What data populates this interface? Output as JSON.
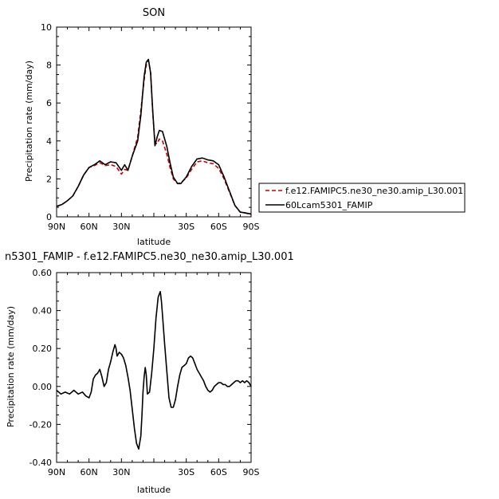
{
  "chart_data": [
    {
      "type": "line",
      "title": "SON",
      "xlabel": "latitude",
      "ylabel": "Precipitation rate (mm/day)",
      "xlim": [
        90,
        -90
      ],
      "ylim": [
        0,
        10
      ],
      "xticks": [
        90,
        60,
        30,
        0,
        -30,
        -60,
        -90
      ],
      "xtick_labels": [
        "90N",
        "60N",
        "30N",
        "",
        "30S",
        "60S",
        "90S"
      ],
      "yticks": [
        0,
        2,
        4,
        6,
        8,
        10
      ],
      "ytick_labels": [
        "0",
        "2",
        "4",
        "6",
        "8",
        "10"
      ],
      "legend_position": "right",
      "series": [
        {
          "name": "f.e12.FAMIPC5.ne30_ne30.amip_L30.001",
          "color": "#cc0000",
          "dash": "dashed",
          "x": [
            90,
            85,
            80,
            75,
            70,
            65,
            60,
            55,
            50,
            45,
            40,
            35,
            30,
            27,
            24,
            20,
            15,
            12,
            9,
            7,
            5,
            3,
            1,
            -1,
            -3,
            -5,
            -8,
            -12,
            -15,
            -18,
            -22,
            -25,
            -30,
            -35,
            -40,
            -45,
            -50,
            -55,
            -60,
            -65,
            -70,
            -75,
            -80,
            -85,
            -90
          ],
          "y": [
            0.55,
            0.65,
            0.85,
            1.1,
            1.6,
            2.2,
            2.6,
            2.7,
            2.85,
            2.7,
            2.75,
            2.65,
            2.25,
            2.5,
            2.45,
            3.2,
            4.2,
            5.6,
            7.2,
            8.0,
            8.25,
            7.6,
            5.5,
            3.9,
            3.85,
            4.1,
            4.0,
            3.3,
            2.6,
            2.0,
            1.75,
            1.8,
            2.05,
            2.5,
            2.9,
            2.95,
            2.85,
            2.8,
            2.55,
            2.0,
            1.3,
            0.6,
            0.25,
            0.2,
            0.1
          ]
        },
        {
          "name": "60Lcam5301_FAMIP",
          "color": "#000000",
          "dash": "solid",
          "x": [
            90,
            85,
            80,
            75,
            70,
            65,
            60,
            55,
            50,
            45,
            40,
            35,
            30,
            27,
            24,
            20,
            15,
            12,
            9,
            7,
            5,
            3,
            1,
            -1,
            -3,
            -5,
            -8,
            -12,
            -15,
            -18,
            -22,
            -25,
            -30,
            -35,
            -40,
            -45,
            -50,
            -55,
            -60,
            -65,
            -70,
            -75,
            -80,
            -85,
            -90
          ],
          "y": [
            0.55,
            0.65,
            0.85,
            1.1,
            1.6,
            2.2,
            2.6,
            2.75,
            2.95,
            2.75,
            2.9,
            2.85,
            2.45,
            2.75,
            2.45,
            3.2,
            4.0,
            5.35,
            7.4,
            8.15,
            8.3,
            7.6,
            5.6,
            3.75,
            4.2,
            4.55,
            4.5,
            3.7,
            2.85,
            2.1,
            1.75,
            1.75,
            2.1,
            2.65,
            3.05,
            3.1,
            3.0,
            2.95,
            2.75,
            2.1,
            1.35,
            0.6,
            0.25,
            0.2,
            0.15
          ]
        }
      ]
    },
    {
      "type": "line",
      "title": "n5301_FAMIP - f.e12.FAMIPC5.ne30_ne30.amip_L30.001",
      "xlabel": "latitude",
      "ylabel": "Precipitation rate (mm/day)",
      "xlim": [
        90,
        -90
      ],
      "ylim": [
        -0.4,
        0.6
      ],
      "xticks": [
        90,
        60,
        30,
        0,
        -30,
        -60,
        -90
      ],
      "xtick_labels": [
        "90N",
        "60N",
        "30N",
        "",
        "30S",
        "60S",
        "90S"
      ],
      "yticks": [
        -0.4,
        -0.2,
        0,
        0.2,
        0.4,
        0.6
      ],
      "ytick_labels": [
        "-0.40",
        "-0.20",
        "0.00",
        "0.20",
        "0.40",
        "0.60"
      ],
      "series": [
        {
          "color": "#000000",
          "dash": "solid",
          "x": [
            90,
            86,
            82,
            78,
            74,
            70,
            66,
            63,
            60,
            58,
            56,
            54,
            52,
            50,
            48,
            46,
            44,
            42,
            40,
            38,
            36,
            35,
            34,
            32,
            30,
            28,
            26,
            24,
            22,
            20,
            18,
            16,
            14,
            12,
            11,
            10,
            9,
            8,
            7,
            6,
            4,
            2,
            0,
            -2,
            -4,
            -6,
            -7,
            -8,
            -9,
            -10,
            -12,
            -14,
            -16,
            -18,
            -20,
            -22,
            -24,
            -26,
            -28,
            -30,
            -32,
            -34,
            -36,
            -38,
            -40,
            -42,
            -44,
            -46,
            -48,
            -50,
            -52,
            -54,
            -56,
            -58,
            -60,
            -62,
            -64,
            -66,
            -68,
            -70,
            -72,
            -74,
            -76,
            -78,
            -80,
            -82,
            -84,
            -86,
            -88,
            -90
          ],
          "y": [
            -0.02,
            -0.04,
            -0.03,
            -0.04,
            -0.02,
            -0.04,
            -0.03,
            -0.05,
            -0.06,
            -0.03,
            0.04,
            0.06,
            0.07,
            0.09,
            0.05,
            0.0,
            0.02,
            0.09,
            0.13,
            0.18,
            0.22,
            0.2,
            0.16,
            0.18,
            0.17,
            0.15,
            0.11,
            0.05,
            -0.02,
            -0.12,
            -0.22,
            -0.3,
            -0.33,
            -0.26,
            -0.15,
            -0.03,
            0.05,
            0.1,
            0.06,
            -0.04,
            -0.03,
            0.07,
            0.2,
            0.36,
            0.47,
            0.5,
            0.45,
            0.38,
            0.3,
            0.22,
            0.08,
            -0.06,
            -0.11,
            -0.11,
            -0.07,
            0.0,
            0.06,
            0.1,
            0.11,
            0.12,
            0.15,
            0.16,
            0.15,
            0.12,
            0.09,
            0.07,
            0.05,
            0.03,
            0.0,
            -0.02,
            -0.03,
            -0.02,
            0.0,
            0.01,
            0.02,
            0.02,
            0.01,
            0.01,
            0.0,
            0.0,
            0.01,
            0.02,
            0.03,
            0.03,
            0.02,
            0.03,
            0.02,
            0.03,
            0.02,
            0.0
          ]
        }
      ]
    }
  ]
}
